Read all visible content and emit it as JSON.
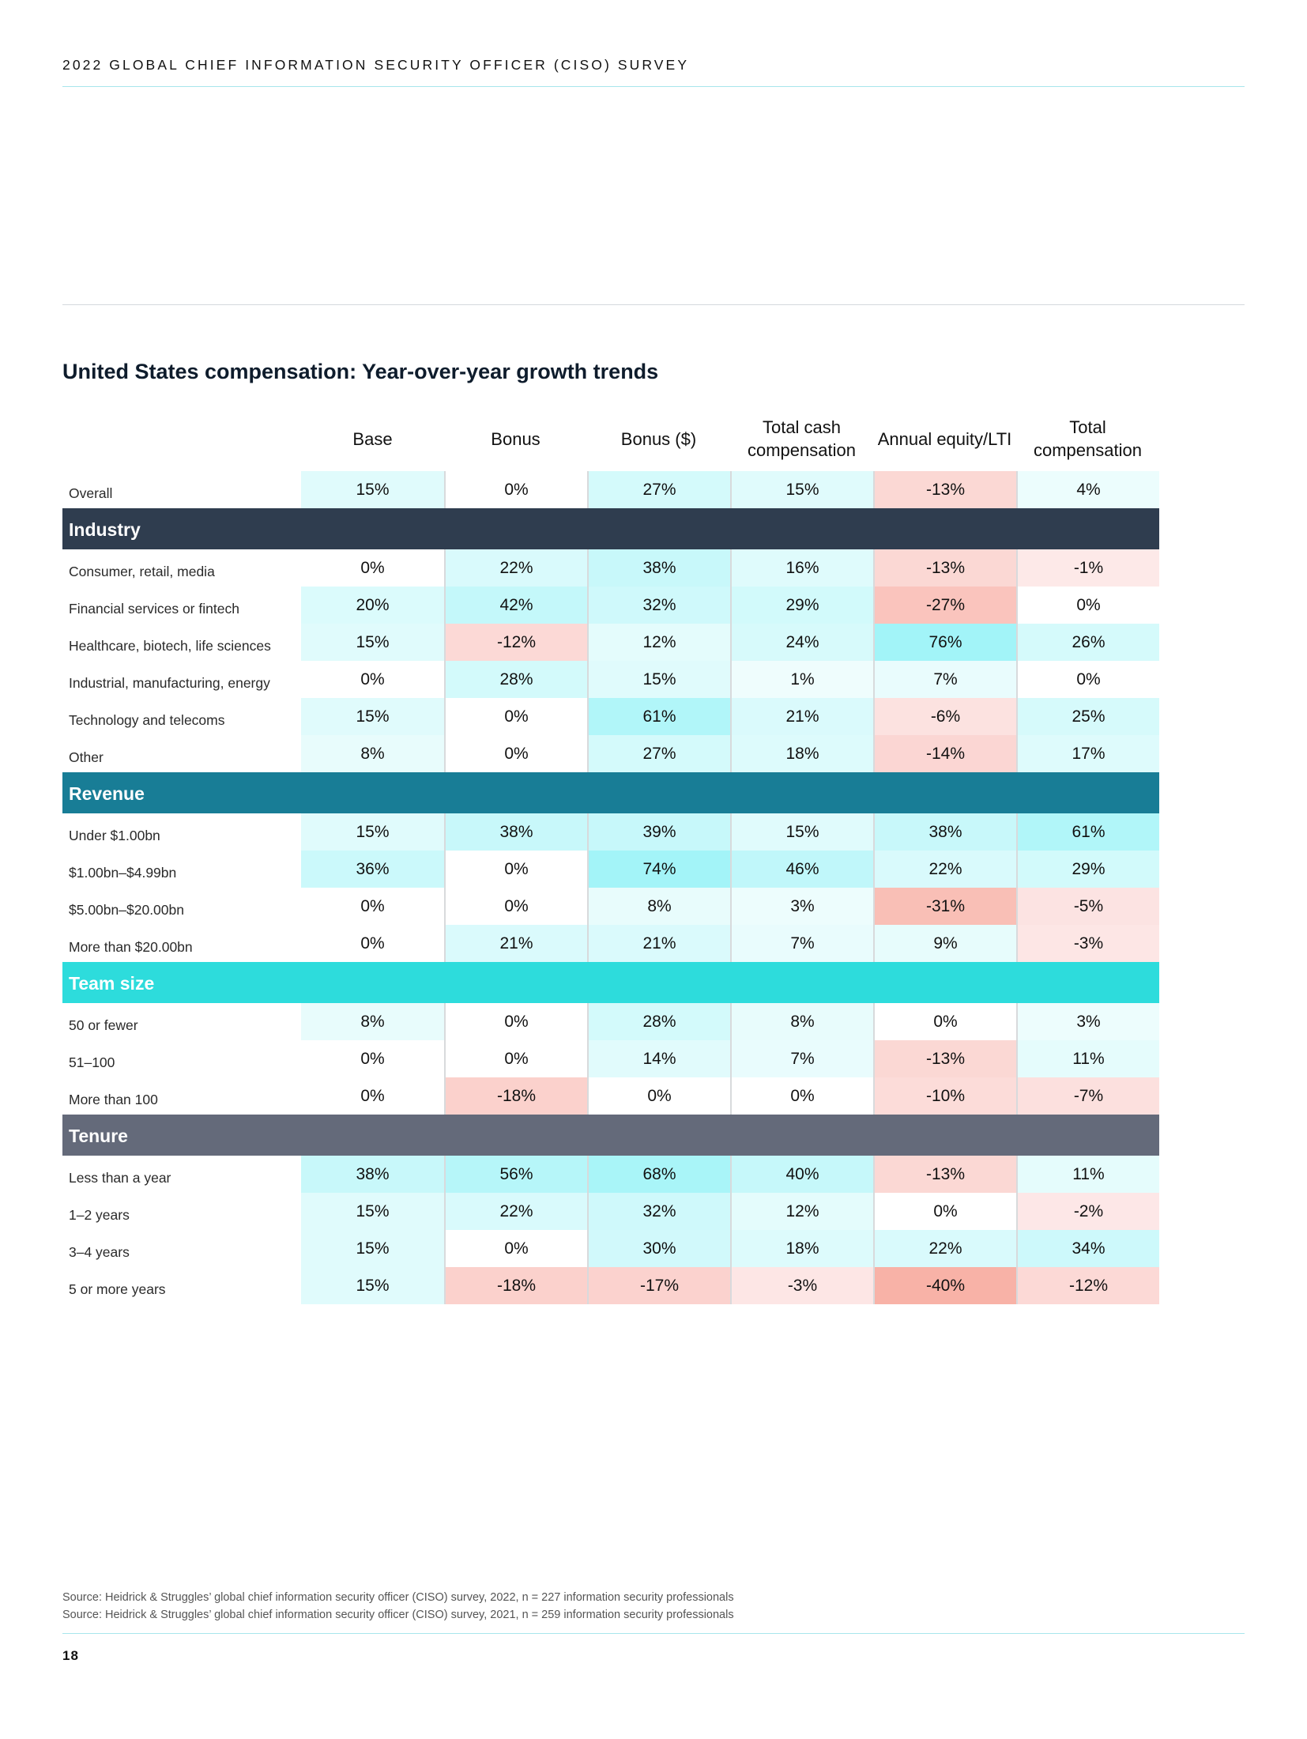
{
  "header": {
    "title": "2022 GLOBAL CHIEF INFORMATION SECURITY OFFICER (CISO) SURVEY"
  },
  "table": {
    "title": "United States compensation: Year-over-year growth trends",
    "columns": [
      "Base",
      "Bonus",
      "Bonus ($)",
      "Total cash compensation",
      "Annual equity/LTI",
      "Total compensation"
    ],
    "overall": {
      "label": "Overall",
      "values": [
        "15%",
        "0%",
        "27%",
        "15%",
        "-13%",
        "4%"
      ]
    },
    "sections": [
      {
        "name": "Industry",
        "color": "#2f3d4f",
        "rows": [
          {
            "label": "Consumer, retail, media",
            "values": [
              "0%",
              "22%",
              "38%",
              "16%",
              "-13%",
              "-1%"
            ]
          },
          {
            "label": "Financial services or fintech",
            "values": [
              "20%",
              "42%",
              "32%",
              "29%",
              "-27%",
              "0%"
            ]
          },
          {
            "label": "Healthcare, biotech, life sciences",
            "values": [
              "15%",
              "-12%",
              "12%",
              "24%",
              "76%",
              "26%"
            ]
          },
          {
            "label": "Industrial, manufacturing, energy",
            "values": [
              "0%",
              "28%",
              "15%",
              "1%",
              "7%",
              "0%"
            ]
          },
          {
            "label": "Technology and telecoms",
            "values": [
              "15%",
              "0%",
              "61%",
              "21%",
              "-6%",
              "25%"
            ]
          },
          {
            "label": "Other",
            "values": [
              "8%",
              "0%",
              "27%",
              "18%",
              "-14%",
              "17%"
            ]
          }
        ]
      },
      {
        "name": "Revenue",
        "color": "#187d96",
        "rows": [
          {
            "label": "Under $1.00bn",
            "values": [
              "15%",
              "38%",
              "39%",
              "15%",
              "38%",
              "61%"
            ]
          },
          {
            "label": "$1.00bn–$4.99bn",
            "values": [
              "36%",
              "0%",
              "74%",
              "46%",
              "22%",
              "29%"
            ]
          },
          {
            "label": "$5.00bn–$20.00bn",
            "values": [
              "0%",
              "0%",
              "8%",
              "3%",
              "-31%",
              "-5%"
            ]
          },
          {
            "label": "More than $20.00bn",
            "values": [
              "0%",
              "21%",
              "21%",
              "7%",
              "9%",
              "-3%"
            ]
          }
        ]
      },
      {
        "name": "Team size",
        "color": "#2ddcdc",
        "rows": [
          {
            "label": "50 or fewer",
            "values": [
              "8%",
              "0%",
              "28%",
              "8%",
              "0%",
              "3%"
            ]
          },
          {
            "label": "51–100",
            "values": [
              "0%",
              "0%",
              "14%",
              "7%",
              "-13%",
              "11%"
            ]
          },
          {
            "label": "More than 100",
            "values": [
              "0%",
              "-18%",
              "0%",
              "0%",
              "-10%",
              "-7%"
            ]
          }
        ]
      },
      {
        "name": "Tenure",
        "color": "#646a7a",
        "rows": [
          {
            "label": "Less than a year",
            "values": [
              "38%",
              "56%",
              "68%",
              "40%",
              "-13%",
              "11%"
            ]
          },
          {
            "label": "1–2 years",
            "values": [
              "15%",
              "22%",
              "32%",
              "12%",
              "0%",
              "-2%"
            ]
          },
          {
            "label": "3–4 years",
            "values": [
              "15%",
              "0%",
              "30%",
              "18%",
              "22%",
              "34%"
            ]
          },
          {
            "label": "5 or more years",
            "values": [
              "15%",
              "-18%",
              "-17%",
              "-3%",
              "-40%",
              "-12%"
            ]
          }
        ]
      }
    ]
  },
  "sources": [
    "Source: Heidrick & Struggles’ global chief information security officer (CISO) survey, 2022, n = 227 information security professionals",
    "Source: Heidrick & Struggles’ global chief information security officer (CISO) survey, 2021, n = 259 information security professionals"
  ],
  "page_number": "18"
}
